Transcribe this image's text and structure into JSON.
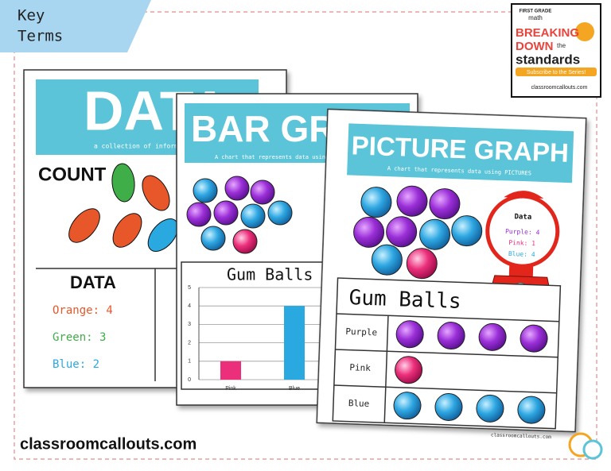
{
  "tab": {
    "line1": "Key",
    "line2": "Terms"
  },
  "badge": {
    "top": "FIRST GRADE",
    "sub": "math",
    "line1": "BREAKING",
    "line2": "DOWN",
    "the": "the",
    "line3": "standards",
    "button": "Subscribe to the Series!",
    "site": "classroomcallouts.com"
  },
  "poster_data": {
    "title": "DATA",
    "subtitle": "a collection of information",
    "count": "COUNT",
    "table_title": "DATA",
    "rows": [
      "Orange: 4",
      "Green: 3",
      "Blue: 2"
    ]
  },
  "poster_bar": {
    "title": "BAR GRAPH",
    "subtitle": "A chart that represents data using bars",
    "chart": {
      "type": "bar",
      "title": "Gum Balls",
      "categories": [
        "Pink",
        "Blue"
      ],
      "values": [
        1,
        4
      ],
      "colors": [
        "#ec2f7b",
        "#29a9e0"
      ],
      "ylim": [
        0,
        5
      ],
      "yticks": [
        0,
        1,
        2,
        3,
        4,
        5
      ],
      "grid": true
    }
  },
  "poster_picture": {
    "title": "PICTURE GRAPH",
    "subtitle": "A chart that represents data using PICTURES",
    "machine": {
      "title": "Data",
      "rows": [
        "Purple: 4",
        "Pink: 1",
        "Blue: 4"
      ]
    },
    "table": {
      "title": "Gum Balls",
      "labels": [
        "Purple",
        "Pink",
        "Blue"
      ],
      "counts": [
        4,
        1,
        4
      ]
    },
    "footer": "classroomcallouts.com"
  },
  "footer": "classroomcallouts.com"
}
